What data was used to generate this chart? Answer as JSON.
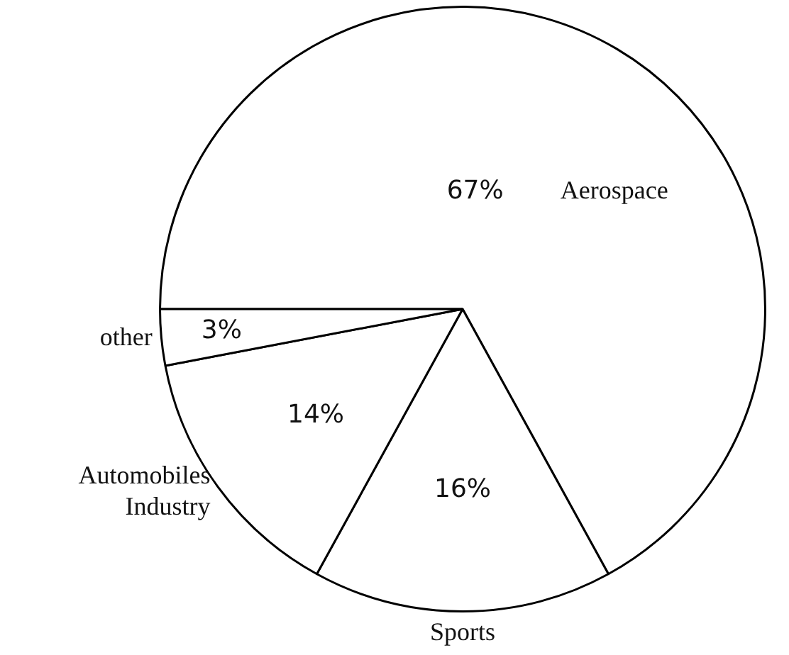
{
  "chart_data": {
    "type": "pie",
    "categories": [
      "Aerospace",
      "Sports",
      "Automobiles Industry",
      "other"
    ],
    "values": [
      67,
      16,
      14,
      3
    ],
    "value_labels": [
      "67%",
      "16%",
      "14%",
      "3%"
    ],
    "colors": [
      "#ffffff",
      "#ffffff",
      "#ffffff",
      "#ffffff"
    ],
    "legend": false
  }
}
